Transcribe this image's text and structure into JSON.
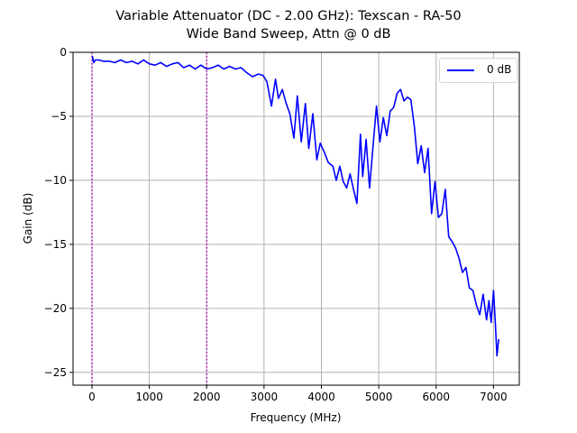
{
  "chart_data": {
    "type": "line",
    "title": "Variable Attenuator (DC - 2.00 GHz): Texscan - RA-50",
    "subtitle": "Wide Band Sweep, Attn @ 0 dB",
    "xlabel": "Frequency (MHz)",
    "ylabel": "Gain (dB)",
    "xlim": [
      -330,
      7450
    ],
    "ylim": [
      -26,
      0
    ],
    "xticks": [
      0,
      1000,
      2000,
      3000,
      4000,
      5000,
      6000,
      7000
    ],
    "xtick_labels": [
      "0",
      "1000",
      "2000",
      "3000",
      "4000",
      "5000",
      "6000",
      "7000"
    ],
    "yticks": [
      0,
      -5,
      -10,
      -15,
      -20,
      -25
    ],
    "ytick_labels": [
      "0",
      "−5",
      "−10",
      "−15",
      "−20",
      "−25"
    ],
    "grid": true,
    "legend_position": "upper right",
    "vlines": [
      {
        "x": 0,
        "color": "#bf00bf",
        "style": "dotted"
      },
      {
        "x": 2000,
        "color": "#bf00bf",
        "style": "dotted"
      }
    ],
    "series": [
      {
        "name": "0 dB",
        "color": "#0000ff",
        "x": [
          10,
          30,
          60,
          120,
          200,
          300,
          400,
          500,
          600,
          700,
          800,
          900,
          1000,
          1100,
          1200,
          1300,
          1400,
          1500,
          1600,
          1700,
          1800,
          1900,
          2000,
          2100,
          2200,
          2300,
          2400,
          2500,
          2600,
          2700,
          2800,
          2900,
          2980,
          3050,
          3130,
          3200,
          3250,
          3320,
          3380,
          3450,
          3520,
          3580,
          3650,
          3720,
          3780,
          3850,
          3920,
          3980,
          4050,
          4120,
          4200,
          4260,
          4320,
          4380,
          4440,
          4500,
          4560,
          4620,
          4680,
          4720,
          4780,
          4840,
          4900,
          4960,
          5020,
          5080,
          5140,
          5200,
          5260,
          5320,
          5380,
          5440,
          5500,
          5560,
          5620,
          5680,
          5740,
          5800,
          5860,
          5920,
          5980,
          6040,
          6100,
          6160,
          6220,
          6280,
          6340,
          6400,
          6460,
          6520,
          6580,
          6640,
          6700,
          6760,
          6820,
          6880,
          6920,
          6960,
          7000,
          7030,
          7060,
          7090
        ],
        "values": [
          -0.3,
          -0.8,
          -0.6,
          -0.6,
          -0.7,
          -0.7,
          -0.8,
          -0.6,
          -0.8,
          -0.7,
          -0.9,
          -0.6,
          -0.9,
          -1.0,
          -0.8,
          -1.1,
          -0.9,
          -0.8,
          -1.2,
          -1.0,
          -1.3,
          -1.0,
          -1.3,
          -1.2,
          -1.0,
          -1.3,
          -1.1,
          -1.3,
          -1.2,
          -1.6,
          -1.9,
          -1.7,
          -1.8,
          -2.3,
          -4.2,
          -2.1,
          -3.6,
          -2.9,
          -3.9,
          -4.8,
          -6.7,
          -3.4,
          -7.0,
          -4.0,
          -7.5,
          -4.8,
          -8.4,
          -7.1,
          -7.8,
          -8.6,
          -8.9,
          -10.0,
          -8.9,
          -10.1,
          -10.6,
          -9.5,
          -10.7,
          -11.8,
          -6.4,
          -9.7,
          -6.8,
          -10.6,
          -7.3,
          -4.2,
          -7.0,
          -5.1,
          -6.5,
          -4.6,
          -4.3,
          -3.2,
          -2.9,
          -3.8,
          -3.5,
          -3.7,
          -5.8,
          -8.7,
          -7.3,
          -9.4,
          -7.5,
          -12.6,
          -10.1,
          -12.9,
          -12.6,
          -10.7,
          -14.4,
          -14.8,
          -15.3,
          -16.1,
          -17.2,
          -16.8,
          -18.4,
          -18.6,
          -19.7,
          -20.5,
          -18.9,
          -20.9,
          -19.4,
          -21.1,
          -18.6,
          -21.0,
          -23.7,
          -22.4
        ]
      }
    ]
  },
  "legend": {
    "entries": [
      {
        "label": "0 dB",
        "color": "#0000ff"
      }
    ]
  }
}
